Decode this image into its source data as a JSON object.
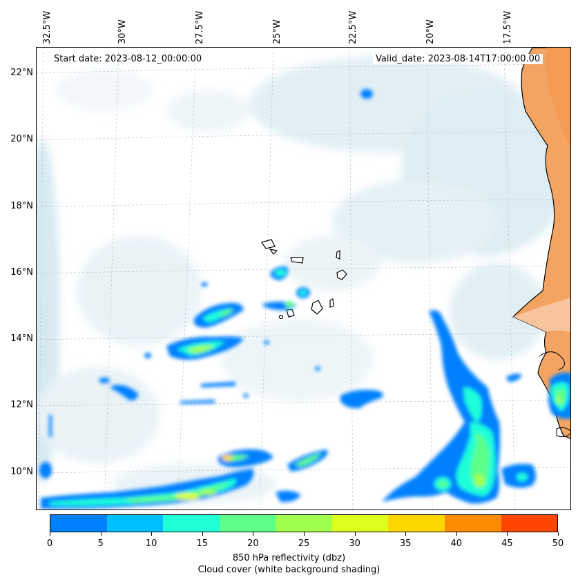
{
  "map": {
    "start_label": "Start date: 2023-08-12_00:00:00",
    "valid_label": "Valid_date: 2023-08-14T17:00:00.00",
    "lon_ticks": [
      "32.5°W",
      "30°W",
      "27.5°W",
      "25°W",
      "22.5°W",
      "20°W",
      "17.5°W"
    ],
    "lat_ticks": [
      "22°N",
      "20°N",
      "18°N",
      "16°N",
      "14°N",
      "12°N",
      "10°N"
    ],
    "region": "Cabo Verde / West African coast",
    "land_color": "#f4a462",
    "cloud_color": "#c9e2ec"
  },
  "colorbar": {
    "ticks": [
      "0",
      "5",
      "10",
      "15",
      "20",
      "25",
      "30",
      "35",
      "40",
      "45",
      "50"
    ],
    "colors": [
      "#0080ff",
      "#00bfff",
      "#1fffd8",
      "#5cff8a",
      "#a0ff4c",
      "#dcff1c",
      "#ffd700",
      "#ff8c00",
      "#ff4500"
    ],
    "label_line1": "850 hPa reflectivity (dbz)",
    "label_line2": "Cloud cover (white background shading)"
  }
}
